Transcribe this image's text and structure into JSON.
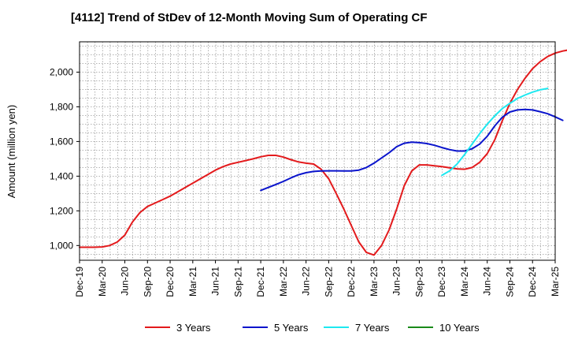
{
  "chart_data": {
    "type": "line",
    "title": "[4112]  Trend of StDev of 12-Month Moving Sum of Operating CF",
    "xlabel": "",
    "ylabel": "Amount (million yen)",
    "ylim": [
      915,
      2175
    ],
    "yticks": [
      1000,
      1200,
      1400,
      1600,
      1800,
      2000
    ],
    "ytick_labels": [
      "1,000",
      "1,200",
      "1,400",
      "1,600",
      "1,800",
      "2,000"
    ],
    "grid": true,
    "legend_position": "bottom",
    "x_tick_labels": [
      "Dec-19",
      "Mar-20",
      "Jun-20",
      "Sep-20",
      "Dec-20",
      "Mar-21",
      "Jun-21",
      "Sep-21",
      "Dec-21",
      "Mar-22",
      "Jun-22",
      "Sep-22",
      "Dec-22",
      "Mar-23",
      "Jun-23",
      "Sep-23",
      "Dec-23",
      "Mar-24",
      "Jun-24",
      "Sep-24",
      "Dec-24",
      "Mar-25"
    ],
    "x_start_month": "Dec-19",
    "x_end_month": "Mar-25",
    "series": [
      {
        "name": "3 Years",
        "color": "#e31a1c",
        "start_month_index": 0,
        "values": [
          990,
          990,
          990,
          992,
          1000,
          1020,
          1060,
          1135,
          1190,
          1225,
          1245,
          1265,
          1285,
          1310,
          1335,
          1360,
          1385,
          1410,
          1435,
          1455,
          1470,
          1480,
          1490,
          1500,
          1512,
          1520,
          1520,
          1510,
          1495,
          1482,
          1475,
          1470,
          1440,
          1385,
          1300,
          1210,
          1115,
          1020,
          960,
          945,
          1000,
          1090,
          1210,
          1345,
          1430,
          1465,
          1465,
          1460,
          1455,
          1448,
          1442,
          1440,
          1450,
          1480,
          1530,
          1610,
          1720,
          1820,
          1900,
          1965,
          2020,
          2060,
          2090,
          2110,
          2122,
          2130
        ]
      },
      {
        "name": "5 Years",
        "color": "#0a14cc",
        "start_month_index": 24,
        "values": [
          1318,
          1335,
          1352,
          1370,
          1390,
          1408,
          1420,
          1427,
          1430,
          1431,
          1431,
          1430,
          1430,
          1435,
          1450,
          1475,
          1505,
          1535,
          1570,
          1590,
          1596,
          1593,
          1588,
          1578,
          1565,
          1553,
          1545,
          1545,
          1558,
          1585,
          1630,
          1690,
          1740,
          1770,
          1782,
          1785,
          1782,
          1772,
          1760,
          1742,
          1722
        ]
      },
      {
        "name": "7 Years",
        "color": "#1ee8f0",
        "start_month_index": 48,
        "values": [
          1405,
          1430,
          1470,
          1525,
          1585,
          1645,
          1700,
          1748,
          1790,
          1820,
          1848,
          1868,
          1885,
          1898,
          1906
        ]
      },
      {
        "name": "10 Years",
        "color": "#1a8a1a",
        "start_month_index": 0,
        "values": []
      }
    ]
  }
}
